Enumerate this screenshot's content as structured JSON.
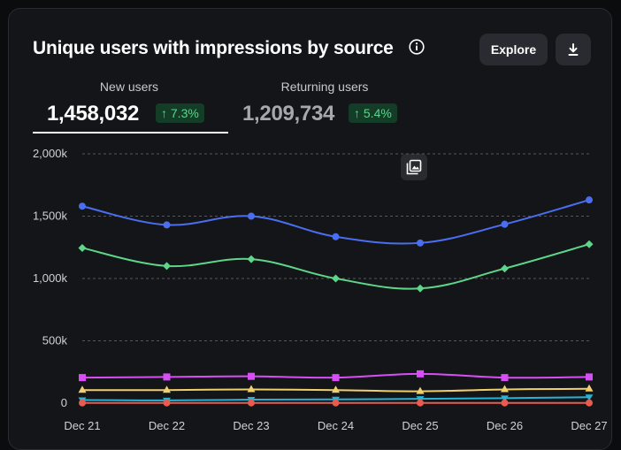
{
  "header": {
    "title": "Unique users with impressions by source",
    "explore_label": "Explore"
  },
  "tabs": [
    {
      "label": "New users",
      "value": "1,458,032",
      "change": "7.3%"
    },
    {
      "label": "Returning users",
      "value": "1,209,734",
      "change": "5.4%"
    }
  ],
  "icons": [
    "info-icon",
    "download-icon",
    "image-stack-icon",
    "arrow-up-icon"
  ],
  "colors": {
    "blue": "#4b6ef0",
    "green": "#5ed68a",
    "magenta": "#d74ef5",
    "yellow": "#f2cf6e",
    "cyan": "#27b3d6",
    "red": "#e85b4f",
    "badge_text": "#5fd38d"
  },
  "chart_data": {
    "type": "line",
    "title": "Unique users with impressions by source",
    "categories": [
      "Dec 21",
      "Dec 22",
      "Dec 23",
      "Dec 24",
      "Dec 25",
      "Dec 26",
      "Dec 27"
    ],
    "ylim": [
      0,
      2000000
    ],
    "yticks": [
      0,
      500000,
      1000000,
      1500000,
      2000000
    ],
    "ytick_labels": [
      "0",
      "500k",
      "1,000k",
      "1,500k",
      "2,000k"
    ],
    "grid": true,
    "series": [
      {
        "color": "#4b6ef0",
        "marker": "circle",
        "values": [
          1580000,
          1430000,
          1500000,
          1335000,
          1285000,
          1435000,
          1630000
        ]
      },
      {
        "color": "#5ed68a",
        "marker": "diamond",
        "values": [
          1245000,
          1100000,
          1155000,
          1000000,
          920000,
          1080000,
          1275000
        ]
      },
      {
        "color": "#d74ef5",
        "marker": "square",
        "values": [
          205000,
          210000,
          215000,
          205000,
          235000,
          205000,
          210000
        ]
      },
      {
        "color": "#f2cf6e",
        "marker": "triangle",
        "values": [
          105000,
          105000,
          110000,
          105000,
          95000,
          110000,
          115000
        ]
      },
      {
        "color": "#27b3d6",
        "marker": "triangle-down",
        "values": [
          25000,
          22000,
          28000,
          30000,
          35000,
          40000,
          48000
        ]
      },
      {
        "color": "#e85b4f",
        "marker": "circle",
        "values": [
          2000,
          2000,
          2000,
          2000,
          2000,
          2000,
          2000
        ]
      }
    ]
  }
}
